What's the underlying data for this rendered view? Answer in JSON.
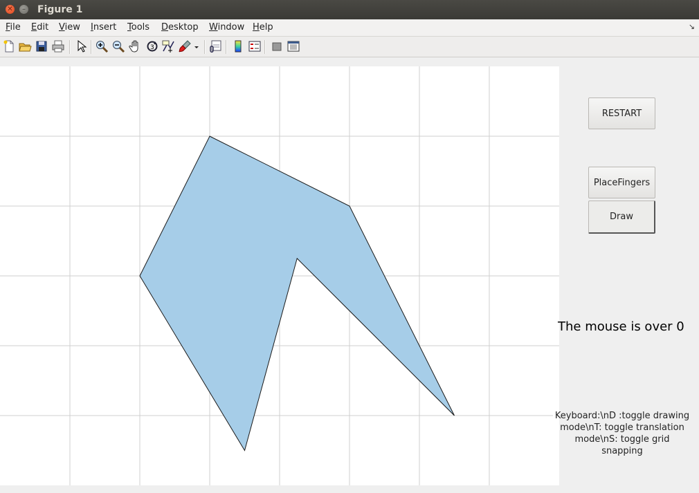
{
  "window": {
    "title": "Figure 1"
  },
  "menubar": {
    "items": [
      {
        "label": "File",
        "ul": "F",
        "rest": "ile"
      },
      {
        "label": "Edit",
        "ul": "E",
        "rest": "dit"
      },
      {
        "label": "View",
        "ul": "V",
        "rest": "iew"
      },
      {
        "label": "Insert",
        "ul": "I",
        "rest": "nsert"
      },
      {
        "label": "Tools",
        "ul": "T",
        "rest": "ools"
      },
      {
        "label": "Desktop",
        "ul": "D",
        "rest": "esktop"
      },
      {
        "label": "Window",
        "ul": "W",
        "rest": "indow"
      },
      {
        "label": "Help",
        "ul": "H",
        "rest": "elp"
      }
    ]
  },
  "toolbar": {
    "icons": [
      "new-figure-icon",
      "open-file-icon",
      "save-icon",
      "print-icon",
      "pointer-icon",
      "zoom-in-icon",
      "zoom-out-icon",
      "pan-hand-icon",
      "rotate-3d-icon",
      "data-cursor-icon",
      "brush-icon",
      "link-plot-icon",
      "colorbar-icon",
      "legend-icon",
      "hide-plot-tools-icon",
      "show-plot-tools-icon"
    ]
  },
  "buttons": {
    "restart": "RESTART",
    "place_fingers": "PlaceFingers",
    "draw": "Draw"
  },
  "status_text": "The mouse is over 0",
  "help_lines": [
    "Keyboard:\\nD :toggle drawing",
    "mode\\nT: toggle translation",
    "mode\\nS: toggle grid snapping"
  ],
  "colors": {
    "polygon_fill": "#a6cde8",
    "polygon_edge": "#1a1a1a",
    "grid": "#cfcfcf"
  },
  "polygon": {
    "vertices": [
      [
        3,
        5
      ],
      [
        5,
        4
      ],
      [
        6.5,
        1
      ],
      [
        4.25,
        3.25
      ],
      [
        3.5,
        0.5
      ],
      [
        2,
        3
      ]
    ]
  },
  "axes": {
    "xlim": [
      0,
      8
    ],
    "ylim": [
      0,
      6
    ],
    "grid": true
  }
}
